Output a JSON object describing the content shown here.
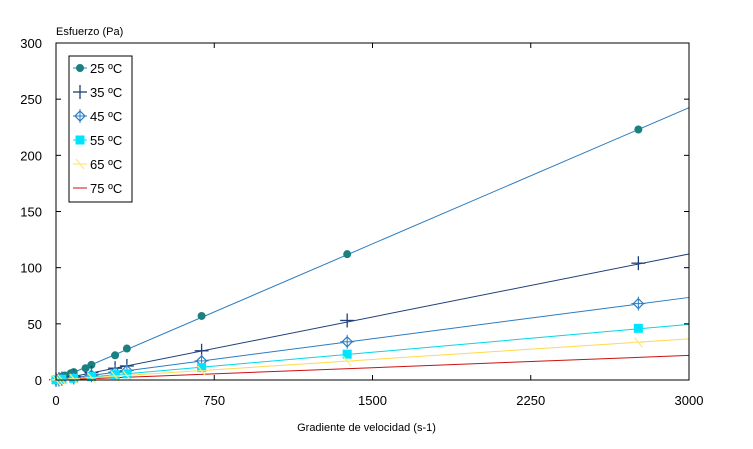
{
  "chart_data": {
    "type": "scatter",
    "ylabel": "Esfuerzo (Pa)",
    "xlabel": "Gradiente de velocidad (s-1)",
    "xlim": [
      0,
      3000
    ],
    "ylim": [
      0,
      300
    ],
    "xticks": [
      0,
      750,
      1500,
      2250,
      3000
    ],
    "yticks": [
      0,
      50,
      100,
      150,
      200,
      250,
      300
    ],
    "grid": false,
    "legend_position": "top-left",
    "series": [
      {
        "name": "25 ºC",
        "marker": "filled-circle",
        "color": "#1a8080",
        "line_color": "#2b7cc1",
        "fit_slope": 0.0808,
        "x": [
          0,
          6,
          14,
          28,
          42,
          70,
          84,
          140,
          168,
          280,
          336,
          690,
          1380,
          2760
        ],
        "y": [
          0.5,
          1.0,
          2.0,
          3.0,
          4.0,
          6.0,
          7.0,
          10.5,
          13.5,
          22.0,
          28.0,
          57.0,
          112.0,
          223.0
        ]
      },
      {
        "name": "35 ºC",
        "marker": "plus",
        "color": "#1f3f7a",
        "line_color": "#1f3f7a",
        "fit_slope": 0.0374,
        "x": [
          0,
          14,
          28,
          84,
          168,
          280,
          336,
          690,
          1380,
          2760
        ],
        "y": [
          0.3,
          0.8,
          1.3,
          3.2,
          6.5,
          10.5,
          12.5,
          26.0,
          53.0,
          104.0
        ]
      },
      {
        "name": "45 ºC",
        "marker": "open-diamond-cross",
        "color": "#2b7cc1",
        "line_color": "#2b7cc1",
        "fit_slope": 0.0245,
        "x": [
          0,
          14,
          28,
          84,
          168,
          280,
          336,
          690,
          1380,
          2760
        ],
        "y": [
          0.2,
          0.5,
          1.0,
          2.2,
          4.2,
          7.0,
          8.5,
          17.0,
          34.0,
          68.0
        ]
      },
      {
        "name": "55 ºC",
        "marker": "filled-square",
        "color": "#00e5ff",
        "line_color": "#00d8e8",
        "fit_slope": 0.0165,
        "x": [
          0,
          14,
          28,
          84,
          168,
          280,
          336,
          690,
          1380,
          2760
        ],
        "y": [
          0.2,
          0.4,
          0.7,
          1.5,
          3.0,
          4.8,
          5.5,
          11.0,
          23.0,
          46.0
        ]
      },
      {
        "name": "65 ºC",
        "marker": "light-cross",
        "color": "#ffe680",
        "line_color": "#ffd94d",
        "fit_slope": 0.0122,
        "x": [
          0,
          14,
          28,
          84,
          168,
          280,
          336,
          690,
          1380,
          2760
        ],
        "y": [
          0.1,
          0.3,
          0.5,
          1.1,
          2.1,
          3.5,
          4.1,
          8.2,
          16.8,
          33.5
        ]
      },
      {
        "name": "75 ºC",
        "marker": "none",
        "color": "#cc1111",
        "line_color": "#cc1111",
        "fit_slope": 0.0073,
        "x": [],
        "y": []
      }
    ]
  }
}
